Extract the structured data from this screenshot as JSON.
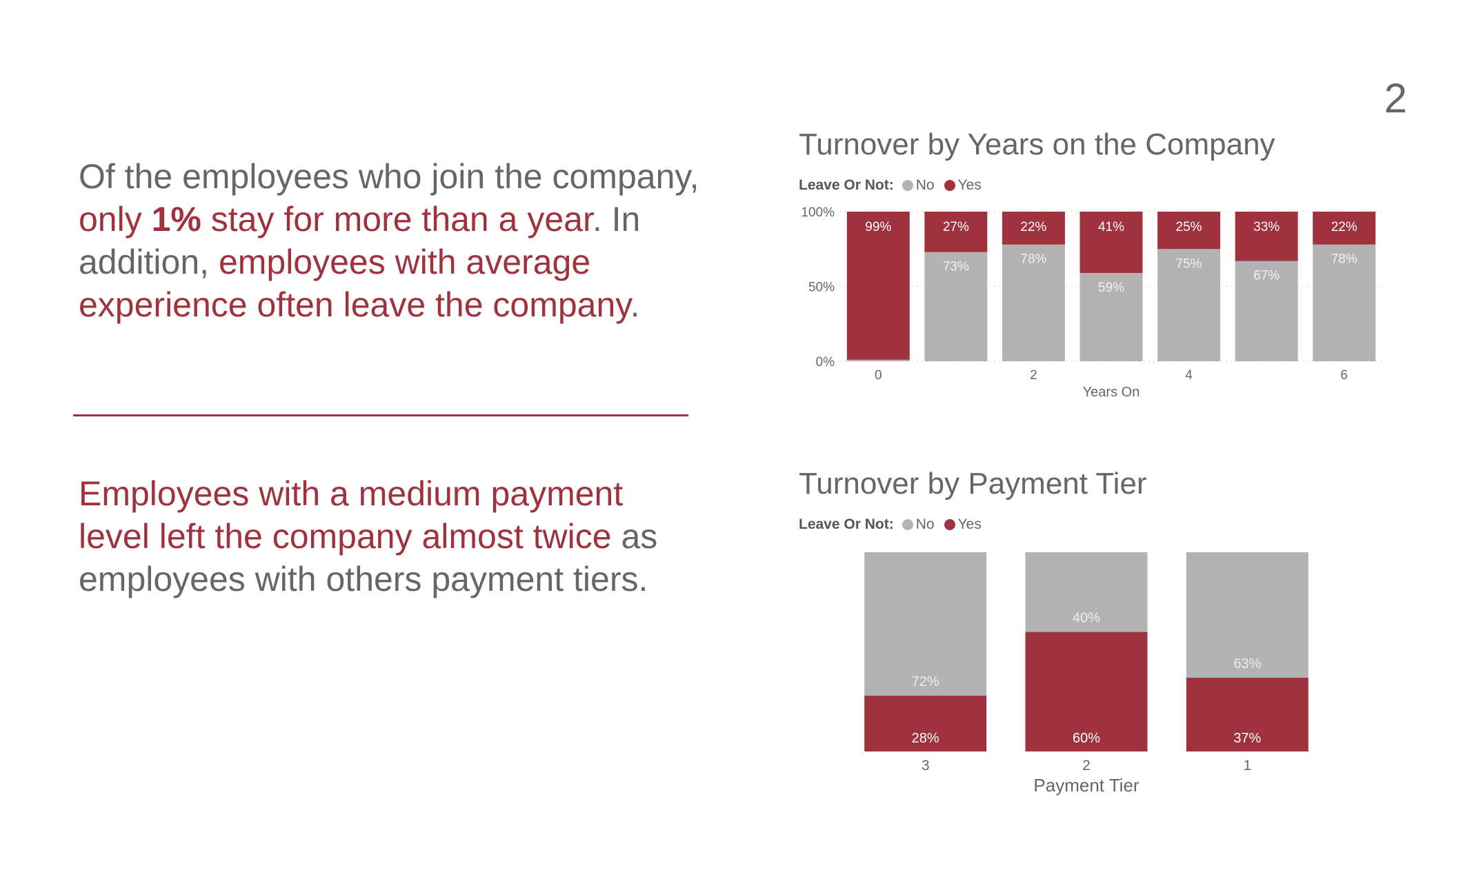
{
  "page_number": "2",
  "insights": {
    "first": {
      "p1": "Of the employees who join the company, ",
      "p2": "only ",
      "p3": "1%",
      "p4": " stay for more than a year",
      "p5": ". In addition, ",
      "p6": "employees with average experience often leave the company",
      "p7": "."
    },
    "second": {
      "p1": "Employees with a medium payment level left the company almost twice",
      "p2": " as employees with others payment tiers."
    }
  },
  "colors": {
    "no": "#b3b3b3",
    "yes": "#a0323e",
    "text": "#666666"
  },
  "chart_data": [
    {
      "type": "bar",
      "stacked": true,
      "normalized": true,
      "title": "Turnover by Years on the Company",
      "legend": {
        "title": "Leave Or Not:",
        "entries": [
          "No",
          "Yes"
        ],
        "position": "top-left"
      },
      "xlabel": "Years On",
      "categories": [
        "0",
        "1",
        "2",
        "3",
        "4",
        "5",
        "6"
      ],
      "x_tick_labels": [
        "0",
        "",
        "2",
        "",
        "4",
        "",
        "6"
      ],
      "y_ticks": [
        "0%",
        "50%",
        "100%"
      ],
      "ylim": [
        0,
        100
      ],
      "grid": true,
      "series": [
        {
          "name": "No",
          "values": [
            1,
            73,
            78,
            59,
            75,
            67,
            78
          ],
          "labels": [
            "",
            "73%",
            "78%",
            "59%",
            "75%",
            "67%",
            "78%"
          ]
        },
        {
          "name": "Yes",
          "values": [
            99,
            27,
            22,
            41,
            25,
            33,
            22
          ],
          "labels": [
            "99%",
            "27%",
            "22%",
            "41%",
            "25%",
            "33%",
            "22%"
          ]
        }
      ]
    },
    {
      "type": "bar",
      "stacked": true,
      "normalized": true,
      "title": "Turnover by Payment Tier",
      "legend": {
        "title": "Leave Or Not:",
        "entries": [
          "No",
          "Yes"
        ],
        "position": "top-left"
      },
      "xlabel": "Payment Tier",
      "categories": [
        "3",
        "2",
        "1"
      ],
      "ylim": [
        0,
        100
      ],
      "grid": false,
      "series": [
        {
          "name": "No",
          "values": [
            72,
            40,
            63
          ],
          "labels": [
            "72%",
            "40%",
            "63%"
          ]
        },
        {
          "name": "Yes",
          "values": [
            28,
            60,
            37
          ],
          "labels": [
            "28%",
            "60%",
            "37%"
          ]
        }
      ]
    }
  ]
}
